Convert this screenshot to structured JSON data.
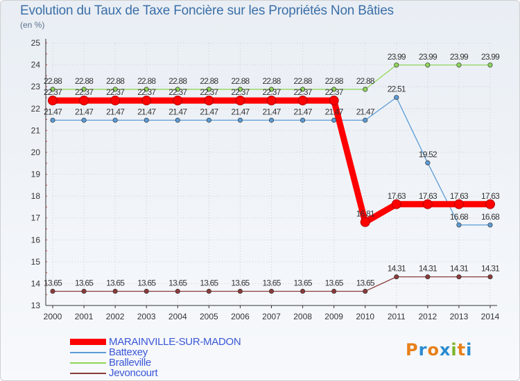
{
  "chart_data": {
    "type": "line",
    "title": "Evolution du Taux de Taxe Foncière sur les Propriétés Non Bâties",
    "ylabel": "(en %)",
    "xlabel": "",
    "x": [
      "2000",
      "2001",
      "2002",
      "2003",
      "2004",
      "2005",
      "2006",
      "2007",
      "2008",
      "2009",
      "2010",
      "2011",
      "2012",
      "2013",
      "2014"
    ],
    "ylim": [
      13,
      25
    ],
    "yticks": [
      "13",
      "14",
      "15",
      "16",
      "17",
      "18",
      "19",
      "20",
      "21",
      "22",
      "23",
      "24",
      "25"
    ],
    "grid": true,
    "legend_position": "bottom-left",
    "series": [
      {
        "name": "MARAINVILLE-SUR-MADON",
        "color": "#ff0000",
        "values": [
          22.37,
          22.37,
          22.37,
          22.37,
          22.37,
          22.37,
          22.37,
          22.37,
          22.37,
          22.37,
          16.81,
          17.63,
          17.63,
          17.63,
          17.63
        ],
        "labels": [
          "22.37",
          "22.37",
          "22.37",
          "22.37",
          "22.37",
          "22.37",
          "22.37",
          "22.37",
          "22.37",
          "22.37",
          "16.81",
          "17.63",
          "17.63",
          "17.63",
          "17.63"
        ]
      },
      {
        "name": "Battexey",
        "color": "#5b9bd5",
        "values": [
          21.47,
          21.47,
          21.47,
          21.47,
          21.47,
          21.47,
          21.47,
          21.47,
          21.47,
          21.47,
          21.47,
          22.51,
          19.52,
          16.68,
          16.68
        ],
        "labels": [
          "21.47",
          "21.47",
          "21.47",
          "21.47",
          "21.47",
          "21.47",
          "21.47",
          "21.47",
          "21.47",
          "21.47",
          "21.47",
          "22.51",
          "19.52",
          "16.68",
          "16.68"
        ]
      },
      {
        "name": "Bralleville",
        "color": "#8fd65a",
        "values": [
          22.88,
          22.88,
          22.88,
          22.88,
          22.88,
          22.88,
          22.88,
          22.88,
          22.88,
          22.88,
          22.88,
          23.99,
          23.99,
          23.99,
          23.99
        ],
        "labels": [
          "22.88",
          "22.88",
          "22.88",
          "22.88",
          "22.88",
          "22.88",
          "22.88",
          "22.88",
          "22.88",
          "22.88",
          "22.88",
          "23.99",
          "23.99",
          "23.99",
          "23.99"
        ]
      },
      {
        "name": "Jevoncourt",
        "color": "#8b3a3a",
        "values": [
          13.65,
          13.65,
          13.65,
          13.65,
          13.65,
          13.65,
          13.65,
          13.65,
          13.65,
          13.65,
          13.65,
          14.31,
          14.31,
          14.31,
          14.31
        ],
        "labels": [
          "13.65",
          "13.65",
          "13.65",
          "13.65",
          "13.65",
          "13.65",
          "13.65",
          "13.65",
          "13.65",
          "13.65",
          "13.65",
          "14.31",
          "14.31",
          "14.31",
          "14.31"
        ]
      }
    ]
  },
  "logo": {
    "text": "Proxiti",
    "letters": [
      "P",
      "r",
      "o",
      "x",
      "i",
      "t",
      "i"
    ],
    "colors": [
      "#e8801a",
      "#2a8bd0",
      "#e8801a",
      "#2a8bd0",
      "#7ab52a",
      "#e8801a",
      "#2a8bd0"
    ]
  }
}
